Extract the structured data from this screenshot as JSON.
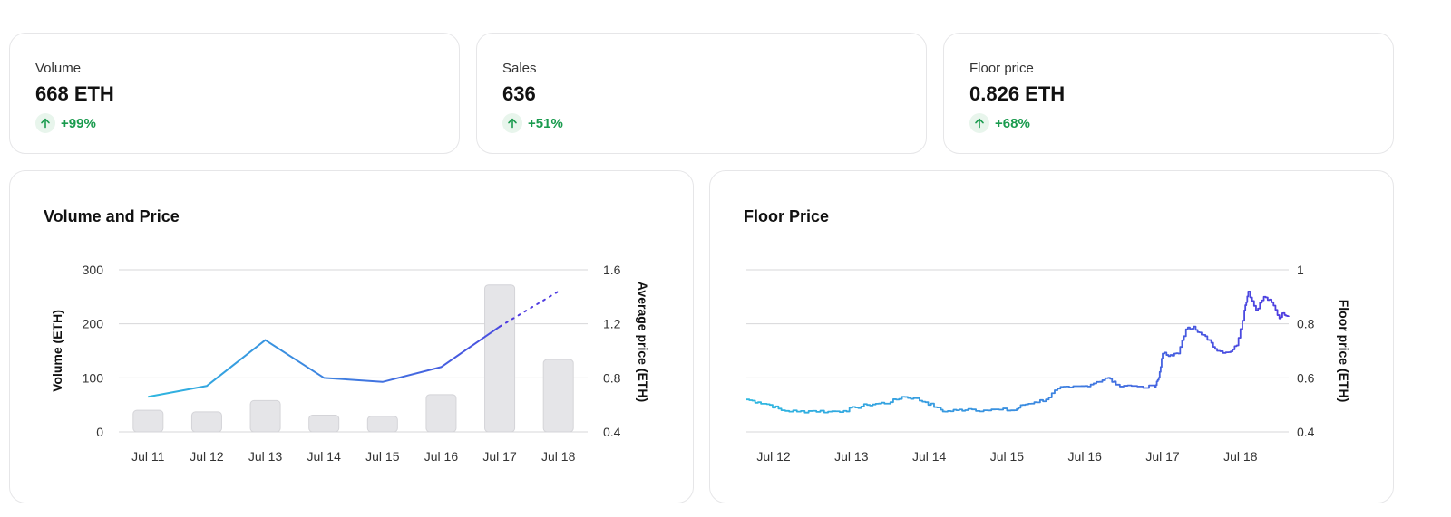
{
  "stats": [
    {
      "label": "Volume",
      "value": "668 ETH",
      "change": "+99%"
    },
    {
      "label": "Sales",
      "value": "636",
      "change": "+51%"
    },
    {
      "label": "Floor price",
      "value": "0.826 ETH",
      "change": "+68%"
    }
  ],
  "colors": {
    "positive": "#1a9b4e",
    "line_start": "#2fb8e0",
    "line_end": "#4f3be0",
    "bar": "#e5e5e8"
  },
  "chart_data": [
    {
      "type": "bar+line",
      "title": "Volume and Price",
      "categories": [
        "Jul 11",
        "Jul 12",
        "Jul 13",
        "Jul 14",
        "Jul 15",
        "Jul 16",
        "Jul 17",
        "Jul 18"
      ],
      "series": [
        {
          "name": "Volume",
          "axis": "left",
          "type": "bar",
          "values": [
            40,
            37,
            58,
            31,
            29,
            69,
            272,
            134
          ]
        },
        {
          "name": "Average price",
          "axis": "right",
          "type": "line",
          "values": [
            0.66,
            0.74,
            1.08,
            0.8,
            0.77,
            0.88,
            1.18,
            1.44
          ],
          "dashed_last_segment": true
        }
      ],
      "ylabel": "Volume (ETH)",
      "ylabel_right": "Average price (ETH)",
      "ylim": [
        0,
        300
      ],
      "ylim_right": [
        0.4,
        1.6
      ],
      "yticks": [
        "0",
        "100",
        "200",
        "300"
      ],
      "yticks_right": [
        "0.4",
        "0.8",
        "1.2",
        "1.6"
      ],
      "grid": true
    },
    {
      "type": "line",
      "title": "Floor Price",
      "xticks": [
        "Jul 12",
        "Jul 13",
        "Jul 14",
        "Jul 15",
        "Jul 16",
        "Jul 17",
        "Jul 18"
      ],
      "x_start": "Jul 11 16:00",
      "x_end": "Jul 18 15:00",
      "ylabel_right": "Floor price (ETH)",
      "ylim_right": [
        0.4,
        1
      ],
      "yticks_right": [
        "0.4",
        "0.6",
        "0.8",
        "1"
      ],
      "grid": true,
      "points": [
        [
          11.65,
          0.52
        ],
        [
          11.8,
          0.51
        ],
        [
          11.95,
          0.5
        ],
        [
          12.1,
          0.48
        ],
        [
          12.3,
          0.475
        ],
        [
          12.5,
          0.478
        ],
        [
          12.7,
          0.475
        ],
        [
          12.9,
          0.478
        ],
        [
          13.05,
          0.49
        ],
        [
          13.2,
          0.5
        ],
        [
          13.35,
          0.505
        ],
        [
          13.5,
          0.51
        ],
        [
          13.65,
          0.53
        ],
        [
          13.8,
          0.525
        ],
        [
          13.95,
          0.51
        ],
        [
          14.1,
          0.49
        ],
        [
          14.2,
          0.475
        ],
        [
          14.35,
          0.48
        ],
        [
          14.5,
          0.485
        ],
        [
          14.7,
          0.48
        ],
        [
          14.9,
          0.482
        ],
        [
          15.1,
          0.48
        ],
        [
          15.2,
          0.5
        ],
        [
          15.35,
          0.51
        ],
        [
          15.5,
          0.52
        ],
        [
          15.65,
          0.56
        ],
        [
          15.8,
          0.565
        ],
        [
          16.0,
          0.57
        ],
        [
          16.15,
          0.585
        ],
        [
          16.3,
          0.6
        ],
        [
          16.4,
          0.575
        ],
        [
          16.6,
          0.57
        ],
        [
          16.9,
          0.565
        ],
        [
          16.95,
          0.6
        ],
        [
          17.0,
          0.69
        ],
        [
          17.1,
          0.685
        ],
        [
          17.2,
          0.69
        ],
        [
          17.3,
          0.78
        ],
        [
          17.4,
          0.79
        ],
        [
          17.5,
          0.76
        ],
        [
          17.6,
          0.74
        ],
        [
          17.7,
          0.7
        ],
        [
          17.85,
          0.695
        ],
        [
          17.95,
          0.72
        ],
        [
          18.05,
          0.85
        ],
        [
          18.1,
          0.92
        ],
        [
          18.2,
          0.85
        ],
        [
          18.3,
          0.9
        ],
        [
          18.4,
          0.88
        ],
        [
          18.5,
          0.82
        ],
        [
          18.55,
          0.84
        ],
        [
          18.62,
          0.83
        ]
      ]
    }
  ]
}
